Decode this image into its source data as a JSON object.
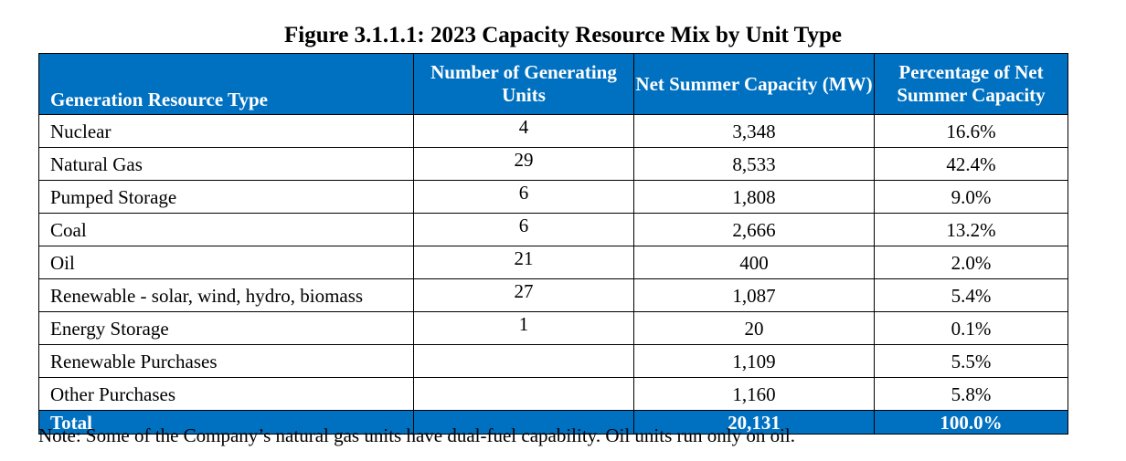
{
  "figure_title": "Figure 3.1.1.1:  2023 Capacity Resource Mix by Unit Type",
  "headers": {
    "type": "Generation Resource Type",
    "units": "Number of Generating Units",
    "capacity": "Net Summer Capacity (MW)",
    "percentage": "Percentage of Net Summer Capacity"
  },
  "rows": [
    {
      "type": "Nuclear",
      "units": "4",
      "capacity": "3,348",
      "percentage": "16.6%"
    },
    {
      "type": "Natural Gas",
      "units": "29",
      "capacity": "8,533",
      "percentage": "42.4%"
    },
    {
      "type": "Pumped Storage",
      "units": "6",
      "capacity": "1,808",
      "percentage": "9.0%"
    },
    {
      "type": "Coal",
      "units": "6",
      "capacity": "2,666",
      "percentage": "13.2%"
    },
    {
      "type": "Oil",
      "units": "21",
      "capacity": "400",
      "percentage": "2.0%"
    },
    {
      "type": "Renewable - solar, wind, hydro, biomass",
      "units": "27",
      "capacity": "1,087",
      "percentage": "5.4%"
    },
    {
      "type": "Energy Storage",
      "units": "1",
      "capacity": "20",
      "percentage": "0.1%"
    },
    {
      "type": "Renewable Purchases",
      "units": "",
      "capacity": "1,109",
      "percentage": "5.5%"
    },
    {
      "type": "Other Purchases",
      "units": "",
      "capacity": "1,160",
      "percentage": "5.8%"
    }
  ],
  "total": {
    "type": "Total",
    "units": "",
    "capacity": "20,131",
    "percentage": "100.0%"
  },
  "note": "Note: Some of the Company’s natural gas units have dual-fuel capability. Oil units run only on oil.",
  "colors": {
    "header_bg": "#0070C0",
    "header_text": "#FFFFFF",
    "border": "#000000"
  },
  "chart_data": {
    "type": "table",
    "title": "Figure 3.1.1.1:  2023 Capacity Resource Mix by Unit Type",
    "columns": [
      "Generation Resource Type",
      "Number of Generating Units",
      "Net Summer Capacity (MW)",
      "Percentage of Net Summer Capacity"
    ],
    "rows": [
      [
        "Nuclear",
        4,
        3348,
        16.6
      ],
      [
        "Natural Gas",
        29,
        8533,
        42.4
      ],
      [
        "Pumped Storage",
        6,
        1808,
        9.0
      ],
      [
        "Coal",
        6,
        2666,
        13.2
      ],
      [
        "Oil",
        21,
        400,
        2.0
      ],
      [
        "Renewable - solar, wind, hydro, biomass",
        27,
        1087,
        5.4
      ],
      [
        "Energy Storage",
        1,
        20,
        0.1
      ],
      [
        "Renewable Purchases",
        null,
        1109,
        5.5
      ],
      [
        "Other Purchases",
        null,
        1160,
        5.8
      ]
    ],
    "total": [
      "Total",
      null,
      20131,
      100.0
    ]
  }
}
